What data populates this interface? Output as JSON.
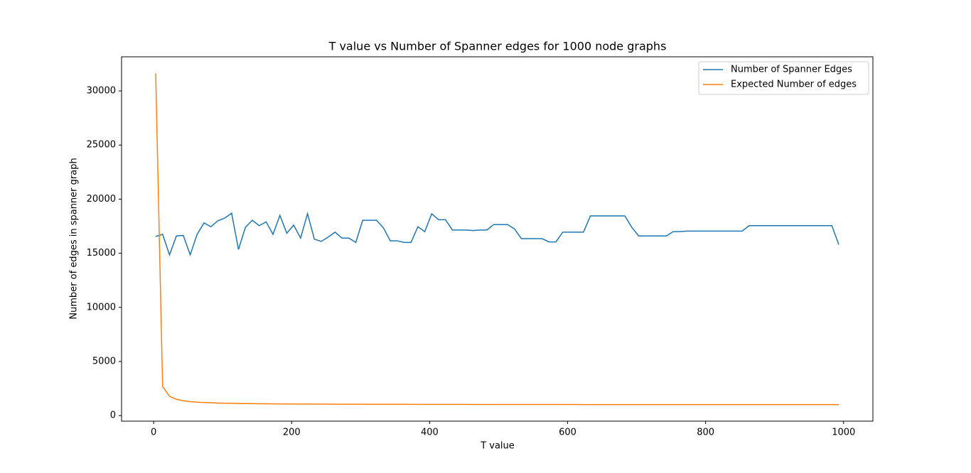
{
  "chart_data": {
    "type": "line",
    "title": "T value vs Number of Spanner edges for 1000 node graphs",
    "x_label": "T value",
    "y_label": "Number of edges in spanner graph",
    "x": [
      3,
      13,
      23,
      33,
      43,
      53,
      63,
      73,
      83,
      93,
      103,
      113,
      123,
      133,
      143,
      153,
      163,
      173,
      183,
      193,
      203,
      213,
      223,
      233,
      243,
      253,
      263,
      273,
      283,
      293,
      303,
      313,
      323,
      333,
      343,
      353,
      363,
      373,
      383,
      393,
      403,
      413,
      423,
      433,
      443,
      453,
      463,
      473,
      483,
      493,
      503,
      513,
      523,
      533,
      543,
      553,
      563,
      573,
      583,
      593,
      603,
      613,
      623,
      633,
      643,
      653,
      663,
      673,
      683,
      693,
      703,
      713,
      723,
      733,
      743,
      753,
      763,
      773,
      783,
      793,
      803,
      813,
      823,
      833,
      843,
      853,
      863,
      873,
      883,
      893,
      903,
      913,
      923,
      933,
      943,
      953,
      963,
      973,
      983,
      993
    ],
    "series": [
      {
        "name": "Number of Spanner Edges",
        "color": "#1f77b4",
        "values": [
          16550,
          16750,
          14850,
          16600,
          16650,
          14850,
          16750,
          17800,
          17450,
          18000,
          18250,
          18700,
          15350,
          17400,
          18050,
          17550,
          17900,
          16750,
          18500,
          16850,
          17600,
          16400,
          18650,
          16300,
          16100,
          16500,
          16950,
          16400,
          16400,
          16000,
          18050,
          18050,
          18050,
          17350,
          16150,
          16150,
          16000,
          16000,
          17450,
          17000,
          18650,
          18100,
          18100,
          17150,
          17150,
          17150,
          17100,
          17150,
          17150,
          17650,
          17650,
          17650,
          17250,
          16350,
          16350,
          16350,
          16350,
          16050,
          16050,
          16950,
          16950,
          16950,
          16950,
          18450,
          18450,
          18450,
          18450,
          18450,
          18450,
          17400,
          16600,
          16600,
          16600,
          16600,
          16600,
          17000,
          17000,
          17050,
          17050,
          17050,
          17050,
          17050,
          17050,
          17050,
          17050,
          17050,
          17550,
          17550,
          17550,
          17550,
          17550,
          17550,
          17550,
          17550,
          17550,
          17550,
          17550,
          17550,
          17550,
          15800
        ]
      },
      {
        "name": "Expected Number of edges",
        "color": "#ff7f0e",
        "values": [
          31623,
          2683,
          1778,
          1501,
          1369,
          1292,
          1241,
          1205,
          1179,
          1158,
          1142,
          1129,
          1118,
          1109,
          1101,
          1094,
          1088,
          1083,
          1078,
          1074,
          1070,
          1067,
          1064,
          1061,
          1058,
          1056,
          1054,
          1052,
          1050,
          1048,
          1047,
          1045,
          1044,
          1042,
          1041,
          1040,
          1039,
          1038,
          1037,
          1036,
          1035,
          1034,
          1033,
          1032,
          1032,
          1031,
          1030,
          1030,
          1029,
          1028,
          1028,
          1027,
          1027,
          1026,
          1026,
          1025,
          1025,
          1024,
          1024,
          1024,
          1023,
          1023,
          1022,
          1022,
          1022,
          1021,
          1021,
          1021,
          1020,
          1020,
          1020,
          1020,
          1019,
          1019,
          1019,
          1019,
          1018,
          1018,
          1018,
          1018,
          1017,
          1017,
          1017,
          1017,
          1017,
          1016,
          1016,
          1016,
          1016,
          1016,
          1016,
          1016,
          1015,
          1015,
          1015,
          1015,
          1015,
          1015,
          1015,
          1014
        ]
      }
    ],
    "xlim": [
      -46.5,
      1042.5
    ],
    "xticks": [
      0,
      200,
      400,
      600,
      800,
      1000
    ],
    "ylim": [
      -516,
      33153
    ],
    "yticks": [
      0,
      5000,
      10000,
      15000,
      20000,
      25000,
      30000
    ],
    "grid": false,
    "legend": "upper right"
  }
}
